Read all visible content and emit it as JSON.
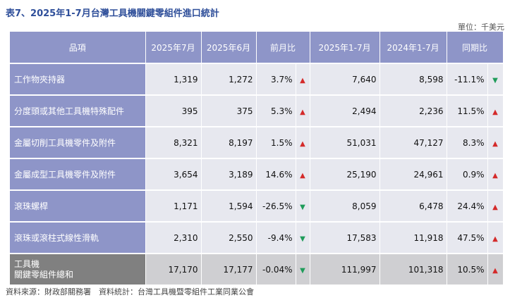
{
  "title": "表7、2025年1-7月台灣工具機關鍵零組件進口統計",
  "unit": "單位：千美元",
  "headers": {
    "item": "品項",
    "jul2025": "2025年7月",
    "jun2025": "2025年6月",
    "mom": "前月比",
    "ytd2025": "2025年1-7月",
    "ytd2024": "2024年1-7月",
    "yoy": "同期比"
  },
  "rows": [
    {
      "item": "工作物夾持器",
      "jul2025": "1,319",
      "jun2025": "1,272",
      "mom": "3.7%",
      "mom_dir": "up",
      "ytd2025": "7,640",
      "ytd2024": "8,598",
      "yoy": "-11.1%",
      "yoy_dir": "down"
    },
    {
      "item": "分度頭或其他工具機特殊配件",
      "jul2025": "395",
      "jun2025": "375",
      "mom": "5.3%",
      "mom_dir": "up",
      "ytd2025": "2,494",
      "ytd2024": "2,236",
      "yoy": "11.5%",
      "yoy_dir": "up"
    },
    {
      "item": "金屬切削工具機零件及附件",
      "jul2025": "8,321",
      "jun2025": "8,197",
      "mom": "1.5%",
      "mom_dir": "up",
      "ytd2025": "51,031",
      "ytd2024": "47,127",
      "yoy": "8.3%",
      "yoy_dir": "up"
    },
    {
      "item": "金屬成型工具機零件及附件",
      "jul2025": "3,654",
      "jun2025": "3,189",
      "mom": "14.6%",
      "mom_dir": "up",
      "ytd2025": "25,190",
      "ytd2024": "24,961",
      "yoy": "0.9%",
      "yoy_dir": "up"
    },
    {
      "item": "滾珠螺桿",
      "jul2025": "1,171",
      "jun2025": "1,594",
      "mom": "-26.5%",
      "mom_dir": "down",
      "ytd2025": "8,059",
      "ytd2024": "6,478",
      "yoy": "24.4%",
      "yoy_dir": "up"
    },
    {
      "item": "滾珠或滾柱式線性滑軌",
      "jul2025": "2,310",
      "jun2025": "2,550",
      "mom": "-9.4%",
      "mom_dir": "down",
      "ytd2025": "17,583",
      "ytd2024": "11,918",
      "yoy": "47.5%",
      "yoy_dir": "up"
    }
  ],
  "total": {
    "item_line1": "工具機",
    "item_line2": "關鍵零組件總和",
    "jul2025": "17,170",
    "jun2025": "17,177",
    "mom": "-0.04%",
    "mom_dir": "down",
    "ytd2025": "111,997",
    "ytd2024": "101,318",
    "yoy": "10.5%",
    "yoy_dir": "up"
  },
  "source": "資料來源：財政部關務署　資料統計：台灣工具機暨零組件工業同業公會",
  "colors": {
    "header_bg": "#8e95c8",
    "cell_bg": "#e7e8ef",
    "total_bg": "#cfcfd2",
    "total_label_bg": "#808080",
    "up": "#d42a2a",
    "down": "#1f9c5a"
  },
  "icons": {
    "up": "up-triangle-icon",
    "down": "down-triangle-icon"
  }
}
